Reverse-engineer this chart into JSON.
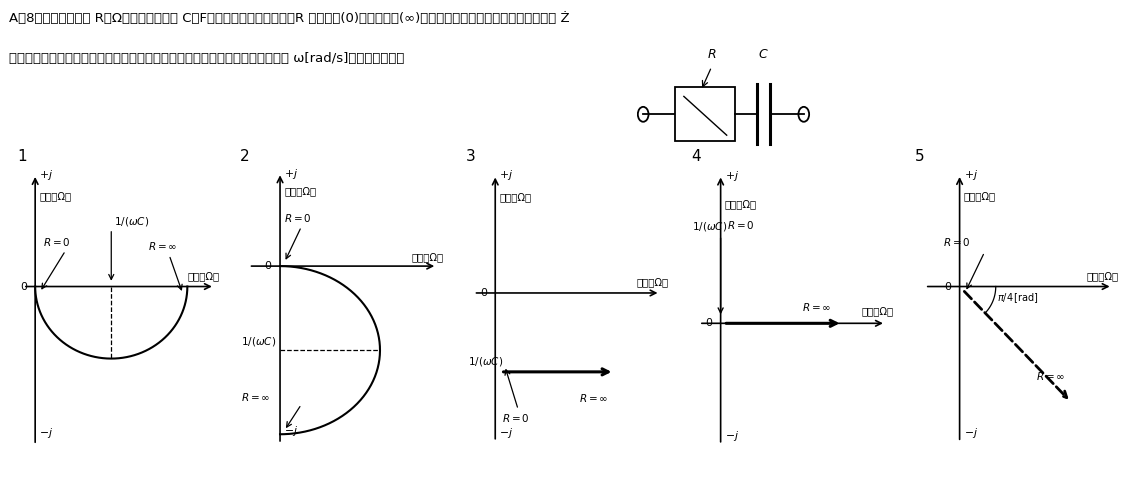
{
  "bg_color": "#ffffff",
  "header1": "A－8　図に示す抗抗 R［Ω］及び静電容量 C［ F］の直列回路において、R の値を零(0)から無限大(∞)まで変えたとき、合成インピーダンス Ż",
  "header2": "　のベクトル軌跡として、正しいものを下の番号から選べ。ただし、角周波数 ω[rad/s]は一定とする。",
  "imag_label": "虚軸［Ω］",
  "real_label": "実軸［Ω］",
  "panel_numbers": [
    "1",
    "2",
    "3",
    "4",
    "5"
  ]
}
